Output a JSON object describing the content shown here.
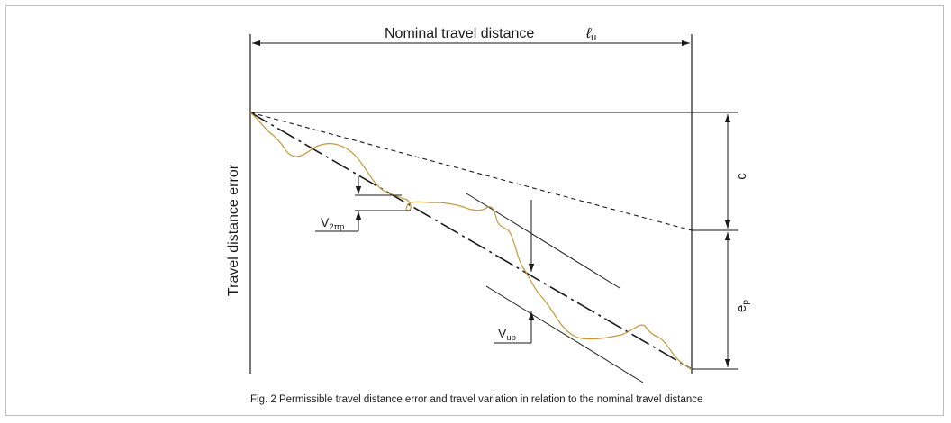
{
  "labels": {
    "nominal_travel_distance": "Nominal travel distance",
    "lu_symbol": "ℓ",
    "lu_sub": "u",
    "travel_distance_error": "Travel distance error",
    "c": "c",
    "ep_main": "e",
    "ep_sub": "p",
    "v2pi_main": "V",
    "v2pi_sub": "2πp",
    "vup_main": "V",
    "vup_sub": "up"
  },
  "caption": "Fig. 2 Permissible travel distance error and travel variation in relation to the nominal travel distance",
  "colors": {
    "line": "#1a1a1a",
    "curve": "#c39a3a",
    "frame": "#bdbdbd"
  }
}
